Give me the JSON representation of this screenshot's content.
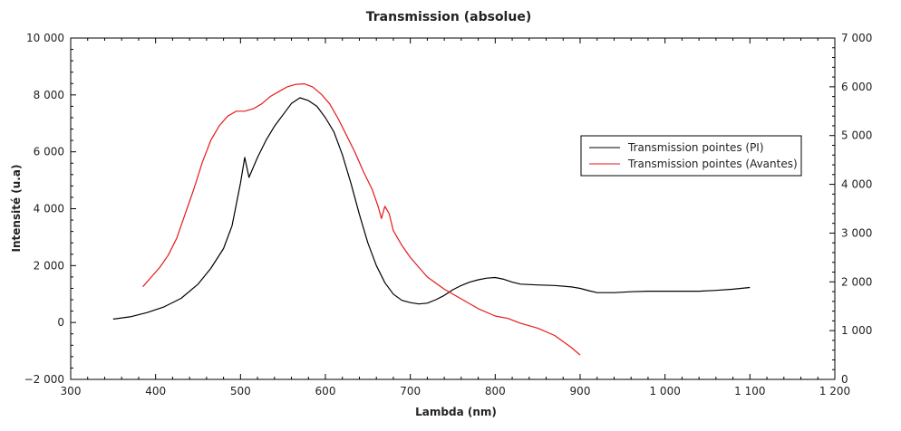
{
  "chart_data": {
    "type": "line",
    "title": "Transmission (absolue)",
    "xlabel": "Lambda (nm)",
    "ylabel": "Intensité (u.a)",
    "xlim": [
      300,
      1200
    ],
    "ylim_left": [
      -2000,
      10000
    ],
    "ylim_right": [
      0,
      7000
    ],
    "x_ticks": [
      300,
      400,
      500,
      600,
      700,
      800,
      900,
      1000,
      1100,
      1200
    ],
    "x_tick_labels": [
      "300",
      "400",
      "500",
      "600",
      "700",
      "800",
      "900",
      "1 000",
      "1 100",
      "1 200"
    ],
    "y_left_ticks": [
      -2000,
      0,
      2000,
      4000,
      6000,
      8000,
      10000
    ],
    "y_left_tick_labels": [
      "−2 000",
      "0",
      "2 000",
      "4 000",
      "6 000",
      "8 000",
      "10 000"
    ],
    "y_right_ticks": [
      0,
      1000,
      2000,
      3000,
      4000,
      5000,
      6000,
      7000
    ],
    "y_right_tick_labels": [
      "0",
      "1 000",
      "2 000",
      "3 000",
      "4 000",
      "5 000",
      "6 000",
      "7 000"
    ],
    "grid": false,
    "legend_position": "right",
    "series": [
      {
        "name": "Transmission pointes (PI)",
        "axis": "left",
        "color": "#000000",
        "x": [
          350,
          370,
          390,
          410,
          430,
          450,
          465,
          480,
          490,
          500,
          505,
          510,
          520,
          530,
          540,
          550,
          560,
          570,
          580,
          590,
          600,
          610,
          620,
          630,
          640,
          650,
          660,
          670,
          680,
          690,
          700,
          710,
          720,
          730,
          740,
          750,
          760,
          770,
          780,
          790,
          800,
          810,
          820,
          830,
          850,
          870,
          890,
          900,
          910,
          920,
          940,
          960,
          980,
          1000,
          1020,
          1040,
          1060,
          1080,
          1100
        ],
        "y": [
          120,
          200,
          350,
          550,
          850,
          1350,
          1900,
          2600,
          3400,
          4900,
          5800,
          5100,
          5800,
          6400,
          6900,
          7300,
          7700,
          7900,
          7800,
          7600,
          7200,
          6700,
          5900,
          4900,
          3800,
          2800,
          2000,
          1400,
          1000,
          780,
          700,
          650,
          680,
          800,
          950,
          1150,
          1300,
          1420,
          1500,
          1560,
          1580,
          1520,
          1420,
          1350,
          1320,
          1300,
          1250,
          1200,
          1120,
          1050,
          1050,
          1080,
          1100,
          1100,
          1100,
          1100,
          1130,
          1170,
          1230
        ]
      },
      {
        "name": "Transmission pointes (Avantes)",
        "axis": "right",
        "color": "#e41a1c",
        "x": [
          385,
          395,
          405,
          415,
          425,
          435,
          445,
          455,
          465,
          475,
          485,
          495,
          505,
          515,
          525,
          535,
          545,
          555,
          565,
          575,
          585,
          595,
          605,
          615,
          625,
          635,
          645,
          655,
          662,
          666,
          670,
          675,
          680,
          690,
          700,
          710,
          720,
          740,
          760,
          780,
          800,
          815,
          830,
          850,
          870,
          890,
          900
        ],
        "y": [
          1900,
          2100,
          2300,
          2550,
          2900,
          3400,
          3900,
          4450,
          4900,
          5200,
          5400,
          5500,
          5500,
          5550,
          5650,
          5800,
          5900,
          6000,
          6050,
          6060,
          6000,
          5850,
          5650,
          5350,
          5000,
          4650,
          4250,
          3900,
          3550,
          3300,
          3550,
          3400,
          3050,
          2750,
          2500,
          2300,
          2100,
          1850,
          1650,
          1450,
          1300,
          1250,
          1150,
          1050,
          900,
          650,
          500
        ]
      }
    ]
  }
}
